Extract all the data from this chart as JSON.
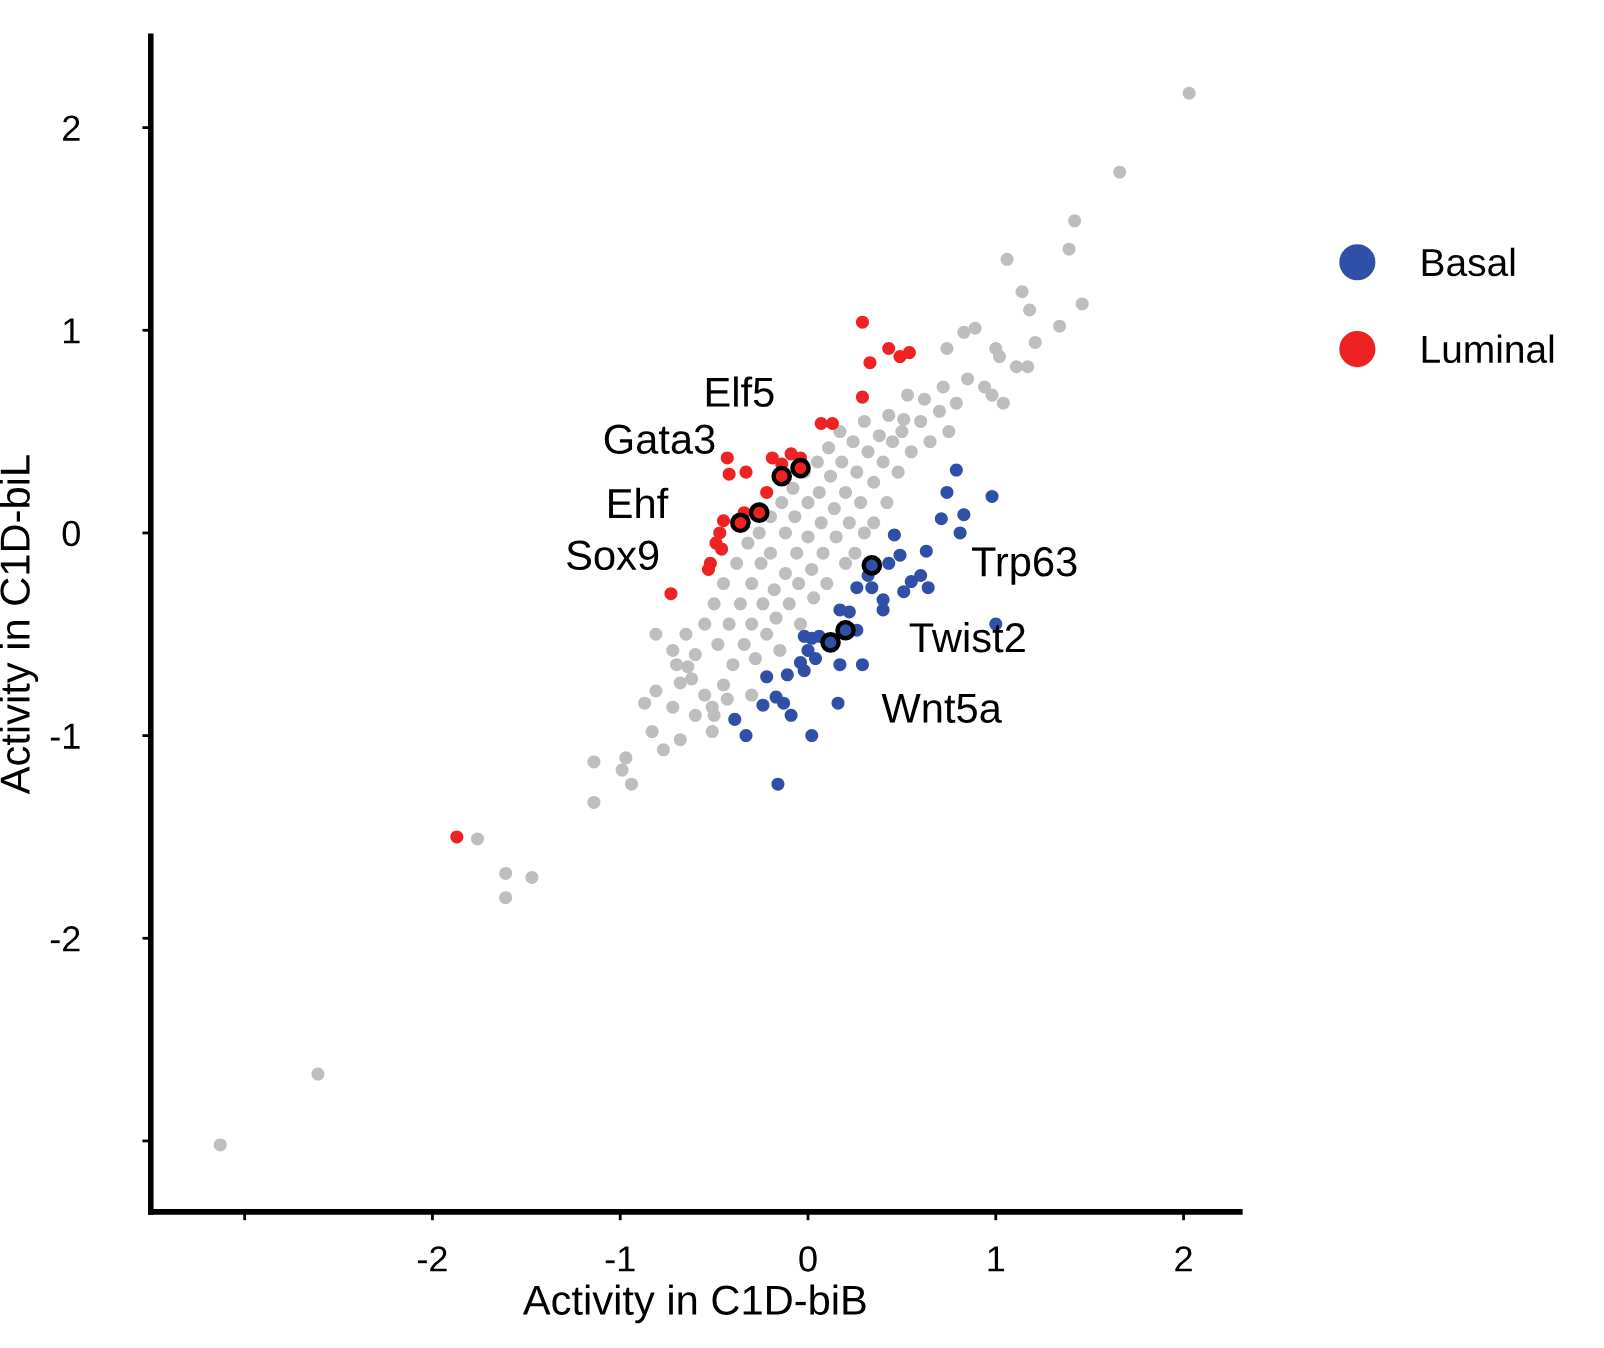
{
  "chart_data": {
    "type": "scatter",
    "xlabel": "Activity in C1D-biB",
    "ylabel": "Activity in C1D-biL",
    "xlim": [
      -3.5,
      2.3
    ],
    "ylim": [
      -3.35,
      2.45
    ],
    "xticks": [
      {
        "value": -3,
        "label": null
      },
      -2,
      -1,
      0,
      1,
      2
    ],
    "yticks": [
      {
        "value": -3,
        "label": null
      },
      -2,
      -1,
      0,
      1,
      2
    ],
    "grid": false,
    "legend": "right",
    "marker": "circle",
    "series": [
      {
        "color": "#bebebe",
        "x": [
          2.03,
          1.66,
          1.42,
          1.39,
          1.06,
          1.14,
          1.46,
          1.18,
          1.34,
          1.21,
          1.11,
          1.17,
          1.0,
          1.02,
          0.89,
          0.83,
          0.74,
          1.04,
          0.98,
          0.85,
          0.94,
          0.72,
          0.79,
          0.53,
          0.62,
          0.43,
          0.51,
          -3.13,
          -2.61,
          -1.76,
          -1.61,
          -1.47,
          -1.61,
          -1.14,
          -1.14,
          -0.97,
          -0.94,
          -0.99,
          -0.87,
          -0.81,
          -0.72,
          -0.83,
          -0.77,
          -0.68,
          -0.81,
          -0.72,
          -0.64,
          -0.51,
          -0.6,
          -0.43,
          -0.51,
          -0.68,
          -0.55,
          -0.5,
          -0.48,
          -0.45,
          -0.42,
          -0.4,
          -0.38,
          -0.36,
          -0.34,
          -0.32,
          -0.3,
          -0.3,
          -0.28,
          -0.26,
          -0.25,
          -0.24,
          -0.22,
          -0.2,
          -0.2,
          -0.18,
          -0.17,
          -0.15,
          -0.14,
          -0.12,
          -0.12,
          -0.1,
          -0.08,
          -0.07,
          -0.06,
          -0.05,
          -0.04,
          -0.02,
          0.0,
          0.0,
          0.02,
          0.03,
          0.05,
          0.06,
          0.07,
          0.08,
          0.1,
          0.11,
          0.12,
          0.14,
          0.15,
          0.17,
          0.18,
          0.2,
          0.22,
          0.24,
          0.26,
          0.28,
          0.3,
          0.32,
          0.35,
          0.38,
          0.4,
          0.42,
          0.45,
          0.48,
          0.5,
          0.55,
          0.6,
          0.65,
          0.7,
          0.75,
          -0.6,
          -0.65,
          -0.62,
          -0.55,
          -0.7,
          -0.5,
          -0.45,
          -0.3,
          0.2,
          0.3,
          0.25,
          0.35
        ],
        "values": [
          2.17,
          1.78,
          1.54,
          1.4,
          1.35,
          1.19,
          1.13,
          1.1,
          1.02,
          0.94,
          0.82,
          0.82,
          0.91,
          0.87,
          1.01,
          0.99,
          0.91,
          0.64,
          0.68,
          0.76,
          0.72,
          0.72,
          0.64,
          0.68,
          0.66,
          0.58,
          0.56,
          -3.02,
          -2.67,
          -1.51,
          -1.68,
          -1.7,
          -1.8,
          -1.13,
          -1.33,
          -1.11,
          -1.24,
          -1.17,
          -0.84,
          -0.78,
          -0.86,
          -0.98,
          -1.07,
          -1.02,
          -0.5,
          -0.58,
          -0.66,
          -0.86,
          -0.9,
          -0.82,
          -0.98,
          -0.74,
          -0.45,
          -0.35,
          -0.55,
          -0.25,
          -0.45,
          -0.65,
          -0.15,
          -0.35,
          -0.55,
          -0.05,
          -0.25,
          -0.45,
          -0.62,
          0.0,
          -0.15,
          -0.35,
          -0.5,
          0.08,
          -0.1,
          -0.28,
          -0.42,
          -0.58,
          0.15,
          0.0,
          -0.2,
          -0.35,
          0.22,
          0.08,
          -0.1,
          -0.25,
          -0.45,
          0.3,
          0.15,
          -0.02,
          -0.18,
          -0.32,
          0.35,
          0.2,
          0.05,
          -0.1,
          -0.25,
          0.42,
          0.28,
          0.12,
          -0.02,
          0.5,
          0.35,
          0.2,
          0.05,
          0.45,
          0.3,
          0.15,
          0.55,
          0.4,
          0.25,
          0.48,
          0.35,
          0.15,
          0.45,
          0.3,
          0.5,
          0.4,
          0.55,
          0.45,
          0.6,
          0.5,
          -0.6,
          -0.5,
          -0.72,
          -0.8,
          -0.65,
          -0.9,
          -0.75,
          -0.8,
          -0.15,
          0.0,
          -0.1,
          0.05
        ]
      },
      {
        "name": "Basal",
        "color": "#3050a8",
        "x": [
          0.79,
          0.98,
          0.74,
          0.71,
          0.83,
          0.81,
          0.46,
          0.49,
          0.63,
          0.43,
          0.6,
          0.64,
          0.51,
          0.55,
          0.34,
          0.4,
          0.26,
          0.32,
          0.4,
          1.0,
          0.17,
          0.22,
          0.26,
          0.17,
          0.29,
          -0.02,
          0.02,
          0.06,
          0.0,
          -0.04,
          0.04,
          -0.11,
          -0.02,
          -0.22,
          -0.17,
          -0.24,
          -0.13,
          -0.09,
          0.16,
          -0.39,
          -0.33,
          0.02,
          -0.16,
          0.34,
          0.2,
          0.12
        ],
        "values": [
          0.31,
          0.18,
          0.2,
          0.07,
          0.09,
          0.0,
          -0.01,
          -0.11,
          -0.09,
          -0.15,
          -0.21,
          -0.27,
          -0.29,
          -0.24,
          -0.27,
          -0.33,
          -0.27,
          -0.21,
          -0.38,
          -0.45,
          -0.38,
          -0.39,
          -0.48,
          -0.65,
          -0.65,
          -0.51,
          -0.52,
          -0.51,
          -0.58,
          -0.64,
          -0.62,
          -0.7,
          -0.68,
          -0.71,
          -0.81,
          -0.85,
          -0.84,
          -0.9,
          -0.84,
          -0.92,
          -1.0,
          -1.0,
          -1.24,
          -0.16,
          -0.48,
          -0.54
        ]
      },
      {
        "name": "Luminal",
        "color": "#ee2222",
        "x": [
          0.29,
          0.43,
          0.33,
          0.49,
          0.54,
          0.29,
          0.07,
          0.13,
          -0.43,
          -0.42,
          -0.33,
          -0.19,
          -0.14,
          -0.09,
          -0.04,
          -0.22,
          -0.34,
          -0.45,
          -0.47,
          -0.49,
          -0.46,
          -0.52,
          -0.53,
          -0.73,
          -1.87,
          -0.04,
          -0.14,
          -0.26,
          -0.36
        ],
        "values": [
          1.04,
          0.91,
          0.84,
          0.87,
          0.89,
          0.67,
          0.54,
          0.54,
          0.37,
          0.29,
          0.3,
          0.37,
          0.34,
          0.39,
          0.37,
          0.2,
          0.1,
          0.06,
          0.0,
          -0.05,
          -0.08,
          -0.15,
          -0.18,
          -0.3,
          -1.5,
          0.32,
          0.28,
          0.1,
          0.05
        ]
      }
    ],
    "annotations": [
      {
        "text": "Elf5",
        "x": -0.04,
        "y": 0.32
      },
      {
        "text": "Gata3",
        "x": -0.14,
        "y": 0.28
      },
      {
        "text": "Ehf",
        "x": -0.26,
        "y": 0.1
      },
      {
        "text": "Sox9",
        "x": -0.36,
        "y": 0.05
      },
      {
        "text": "Trp63",
        "x": 0.34,
        "y": -0.16
      },
      {
        "text": "Twist2",
        "x": 0.2,
        "y": -0.48
      },
      {
        "text": "Wnt5a",
        "x": 0.12,
        "y": -0.54
      }
    ]
  }
}
